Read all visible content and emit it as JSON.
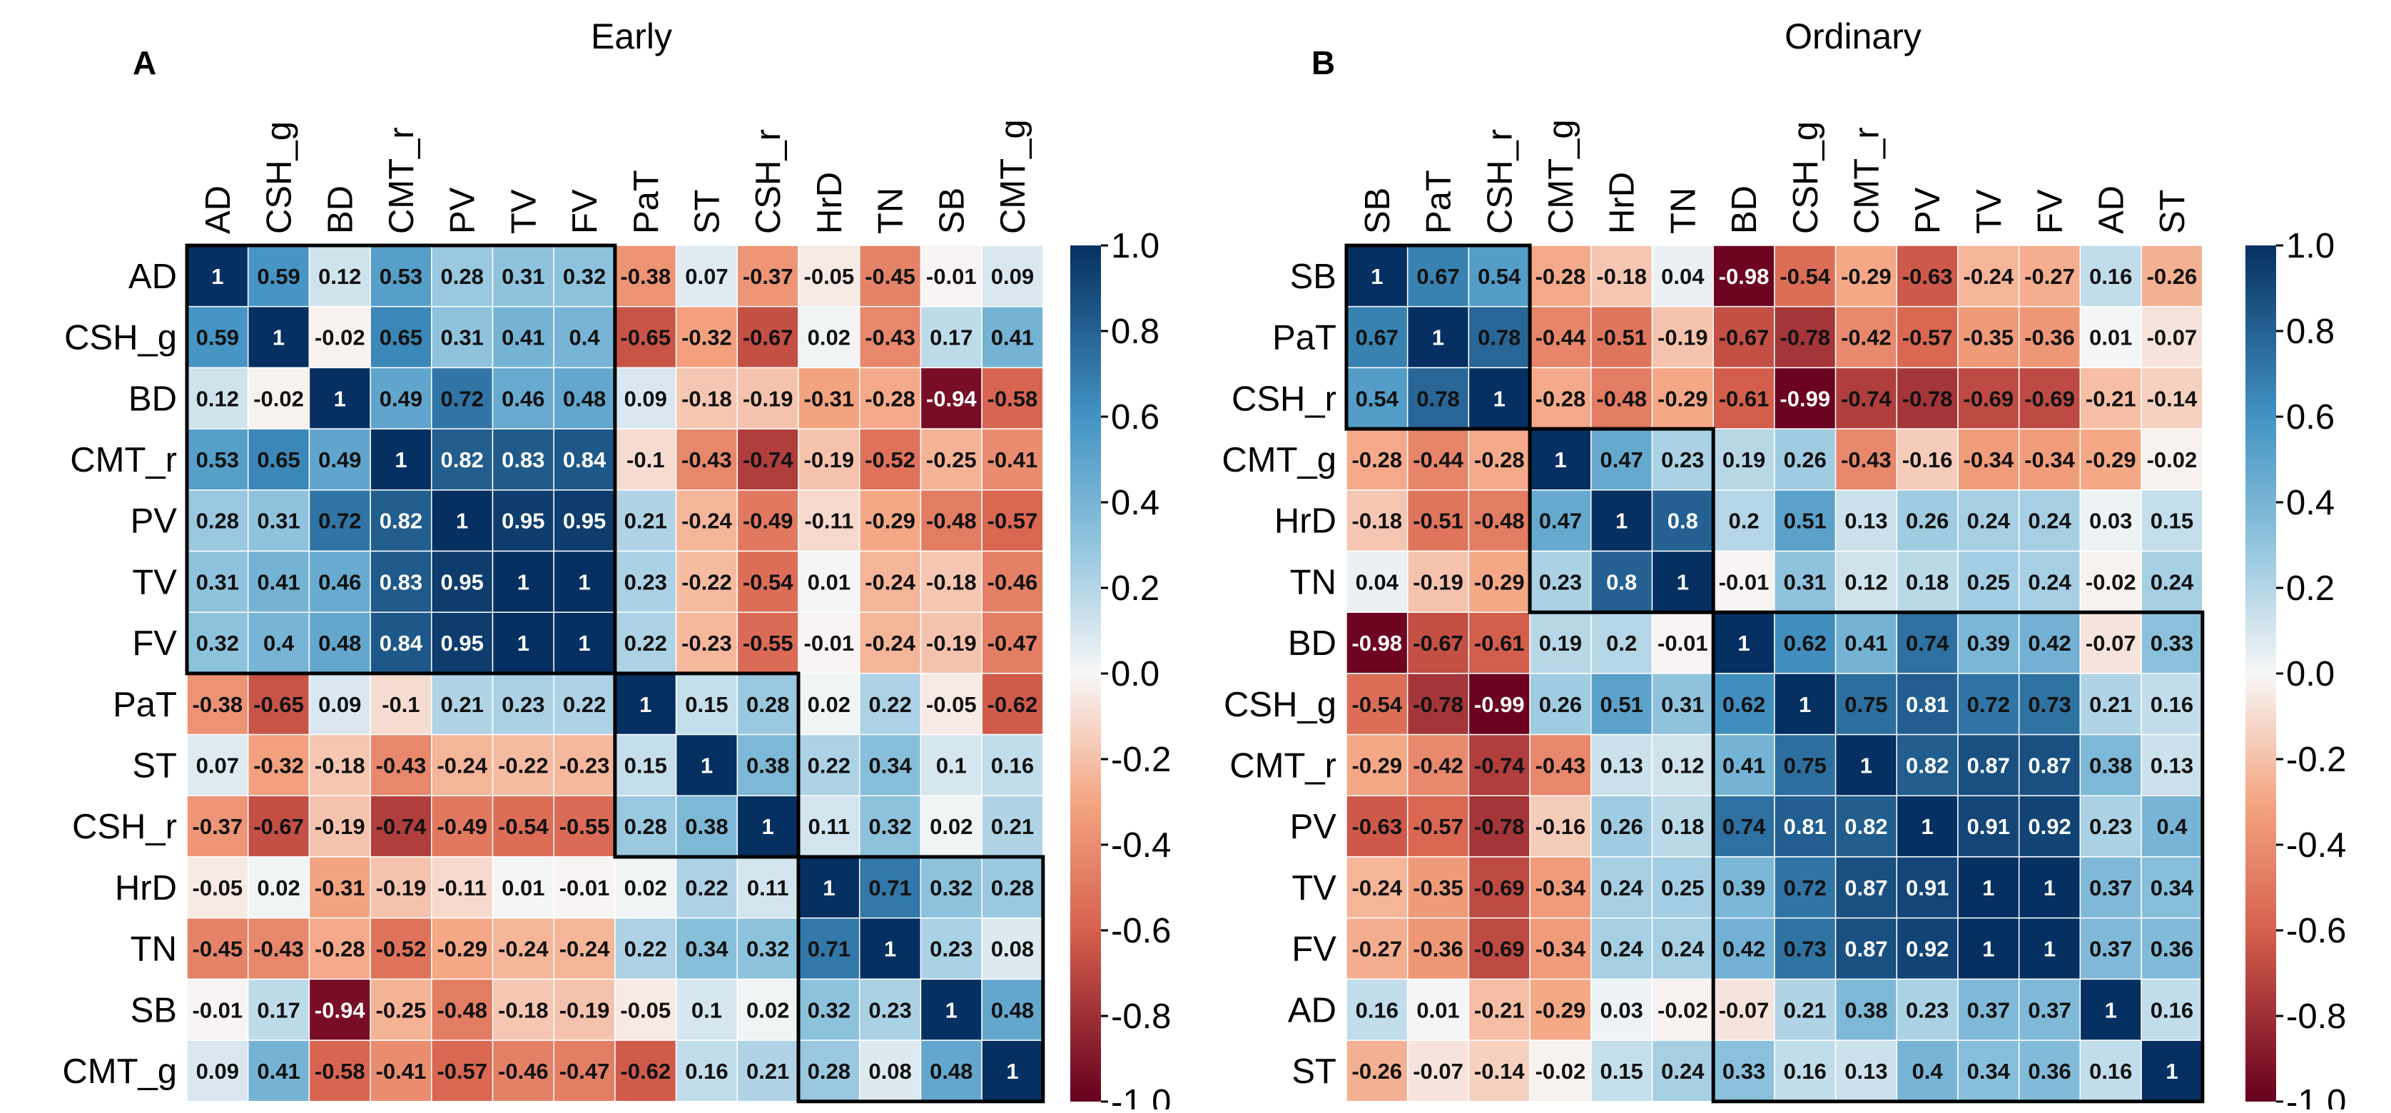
{
  "chart_data": [
    {
      "type": "heatmap",
      "panel_label": "A",
      "title": "Early",
      "variables": [
        "AD",
        "CSH_g",
        "BD",
        "CMT_r",
        "PV",
        "TV",
        "FV",
        "PaT",
        "ST",
        "CSH_r",
        "HrD",
        "TN",
        "SB",
        "CMT_g"
      ],
      "values": [
        [
          1,
          0.59,
          0.12,
          0.53,
          0.28,
          0.31,
          0.32,
          -0.38,
          0.07,
          -0.37,
          -0.05,
          -0.45,
          -0.01,
          0.09
        ],
        [
          0.59,
          1,
          -0.02,
          0.65,
          0.31,
          0.41,
          0.4,
          -0.65,
          -0.32,
          -0.67,
          0.02,
          -0.43,
          0.17,
          0.41
        ],
        [
          0.12,
          -0.02,
          1,
          0.49,
          0.72,
          0.46,
          0.48,
          0.09,
          -0.18,
          -0.19,
          -0.31,
          -0.28,
          -0.94,
          -0.58
        ],
        [
          0.53,
          0.65,
          0.49,
          1,
          0.82,
          0.83,
          0.84,
          -0.1,
          -0.43,
          -0.74,
          -0.19,
          -0.52,
          -0.25,
          -0.41
        ],
        [
          0.28,
          0.31,
          0.72,
          0.82,
          1,
          0.95,
          0.95,
          0.21,
          -0.24,
          -0.49,
          -0.11,
          -0.29,
          -0.48,
          -0.57
        ],
        [
          0.31,
          0.41,
          0.46,
          0.83,
          0.95,
          1,
          1,
          0.23,
          -0.22,
          -0.54,
          0.01,
          -0.24,
          -0.18,
          -0.46
        ],
        [
          0.32,
          0.4,
          0.48,
          0.84,
          0.95,
          1,
          1,
          0.22,
          -0.23,
          -0.55,
          -0.01,
          -0.24,
          -0.19,
          -0.47
        ],
        [
          -0.38,
          -0.65,
          0.09,
          -0.1,
          0.21,
          0.23,
          0.22,
          1,
          0.15,
          0.28,
          0.02,
          0.22,
          -0.05,
          -0.62
        ],
        [
          0.07,
          -0.32,
          -0.18,
          -0.43,
          -0.24,
          -0.22,
          -0.23,
          0.15,
          1,
          0.38,
          0.22,
          0.34,
          0.1,
          0.16
        ],
        [
          -0.37,
          -0.67,
          -0.19,
          -0.74,
          -0.49,
          -0.54,
          -0.55,
          0.28,
          0.38,
          1,
          0.11,
          0.32,
          0.02,
          0.21
        ],
        [
          -0.05,
          0.02,
          -0.31,
          -0.19,
          -0.11,
          0.01,
          -0.01,
          0.02,
          0.22,
          0.11,
          1,
          0.71,
          0.32,
          0.28
        ],
        [
          -0.45,
          -0.43,
          -0.28,
          -0.52,
          -0.29,
          -0.24,
          -0.24,
          0.22,
          0.34,
          0.32,
          0.71,
          1,
          0.23,
          0.08
        ],
        [
          -0.01,
          0.17,
          -0.94,
          -0.25,
          -0.48,
          -0.18,
          -0.19,
          -0.05,
          0.1,
          0.02,
          0.32,
          0.23,
          1,
          0.48
        ],
        [
          0.09,
          0.41,
          -0.58,
          -0.41,
          -0.57,
          -0.46,
          -0.47,
          -0.62,
          0.16,
          0.21,
          0.28,
          0.08,
          0.48,
          1
        ]
      ],
      "cluster_boxes": [
        [
          0,
          6
        ],
        [
          7,
          9
        ],
        [
          10,
          13
        ]
      ],
      "colorbar": {
        "range": [
          -1.0,
          1.0
        ],
        "ticks": [
          "1.0",
          "0.8",
          "0.6",
          "0.4",
          "0.2",
          "0.0",
          "-0.2",
          "-0.4",
          "-0.6",
          "-0.8",
          "-1.0"
        ]
      }
    },
    {
      "type": "heatmap",
      "panel_label": "B",
      "title": "Ordinary",
      "variables": [
        "SB",
        "PaT",
        "CSH_r",
        "CMT_g",
        "HrD",
        "TN",
        "BD",
        "CSH_g",
        "CMT_r",
        "PV",
        "TV",
        "FV",
        "AD",
        "ST"
      ],
      "values": [
        [
          1,
          0.67,
          0.54,
          -0.28,
          -0.18,
          0.04,
          -0.98,
          -0.54,
          -0.29,
          -0.63,
          -0.24,
          -0.27,
          0.16,
          -0.26
        ],
        [
          0.67,
          1,
          0.78,
          -0.44,
          -0.51,
          -0.19,
          -0.67,
          -0.78,
          -0.42,
          -0.57,
          -0.35,
          -0.36,
          0.01,
          -0.07
        ],
        [
          0.54,
          0.78,
          1,
          -0.28,
          -0.48,
          -0.29,
          -0.61,
          -0.99,
          -0.74,
          -0.78,
          -0.69,
          -0.69,
          -0.21,
          -0.14
        ],
        [
          -0.28,
          -0.44,
          -0.28,
          1,
          0.47,
          0.23,
          0.19,
          0.26,
          -0.43,
          -0.16,
          -0.34,
          -0.34,
          -0.29,
          -0.02
        ],
        [
          -0.18,
          -0.51,
          -0.48,
          0.47,
          1,
          0.8,
          0.2,
          0.51,
          0.13,
          0.26,
          0.24,
          0.24,
          0.03,
          0.15
        ],
        [
          0.04,
          -0.19,
          -0.29,
          0.23,
          0.8,
          1,
          -0.01,
          0.31,
          0.12,
          0.18,
          0.25,
          0.24,
          -0.02,
          0.24
        ],
        [
          -0.98,
          -0.67,
          -0.61,
          0.19,
          0.2,
          -0.01,
          1,
          0.62,
          0.41,
          0.74,
          0.39,
          0.42,
          -0.07,
          0.33
        ],
        [
          -0.54,
          -0.78,
          -0.99,
          0.26,
          0.51,
          0.31,
          0.62,
          1,
          0.75,
          0.81,
          0.72,
          0.73,
          0.21,
          0.16
        ],
        [
          -0.29,
          -0.42,
          -0.74,
          -0.43,
          0.13,
          0.12,
          0.41,
          0.75,
          1,
          0.82,
          0.87,
          0.87,
          0.38,
          0.13
        ],
        [
          -0.63,
          -0.57,
          -0.78,
          -0.16,
          0.26,
          0.18,
          0.74,
          0.81,
          0.82,
          1,
          0.91,
          0.92,
          0.23,
          0.4
        ],
        [
          -0.24,
          -0.35,
          -0.69,
          -0.34,
          0.24,
          0.25,
          0.39,
          0.72,
          0.87,
          0.91,
          1,
          1,
          0.37,
          0.34
        ],
        [
          -0.27,
          -0.36,
          -0.69,
          -0.34,
          0.24,
          0.24,
          0.42,
          0.73,
          0.87,
          0.92,
          1,
          1,
          0.37,
          0.36
        ],
        [
          0.16,
          0.01,
          -0.21,
          -0.29,
          0.03,
          -0.02,
          -0.07,
          0.21,
          0.38,
          0.23,
          0.37,
          0.37,
          1,
          0.16
        ],
        [
          -0.26,
          -0.07,
          -0.14,
          -0.02,
          0.15,
          0.24,
          0.33,
          0.16,
          0.13,
          0.4,
          0.34,
          0.36,
          0.16,
          1
        ]
      ],
      "cluster_boxes": [
        [
          0,
          2
        ],
        [
          3,
          5
        ],
        [
          6,
          13
        ]
      ],
      "colorbar": {
        "range": [
          -1.0,
          1.0
        ],
        "ticks": [
          "1.0",
          "0.8",
          "0.6",
          "0.4",
          "0.2",
          "0.0",
          "-0.2",
          "-0.4",
          "-0.6",
          "-0.8",
          "-1.0"
        ]
      }
    }
  ],
  "colors": {
    "neg_strong": "#67001f",
    "neg_mid": "#d6604d",
    "neg_light": "#f4a582",
    "neutral": "#f7f7f7",
    "pos_light": "#92c5de",
    "pos_mid": "#4393c3",
    "pos_strong": "#053061"
  }
}
